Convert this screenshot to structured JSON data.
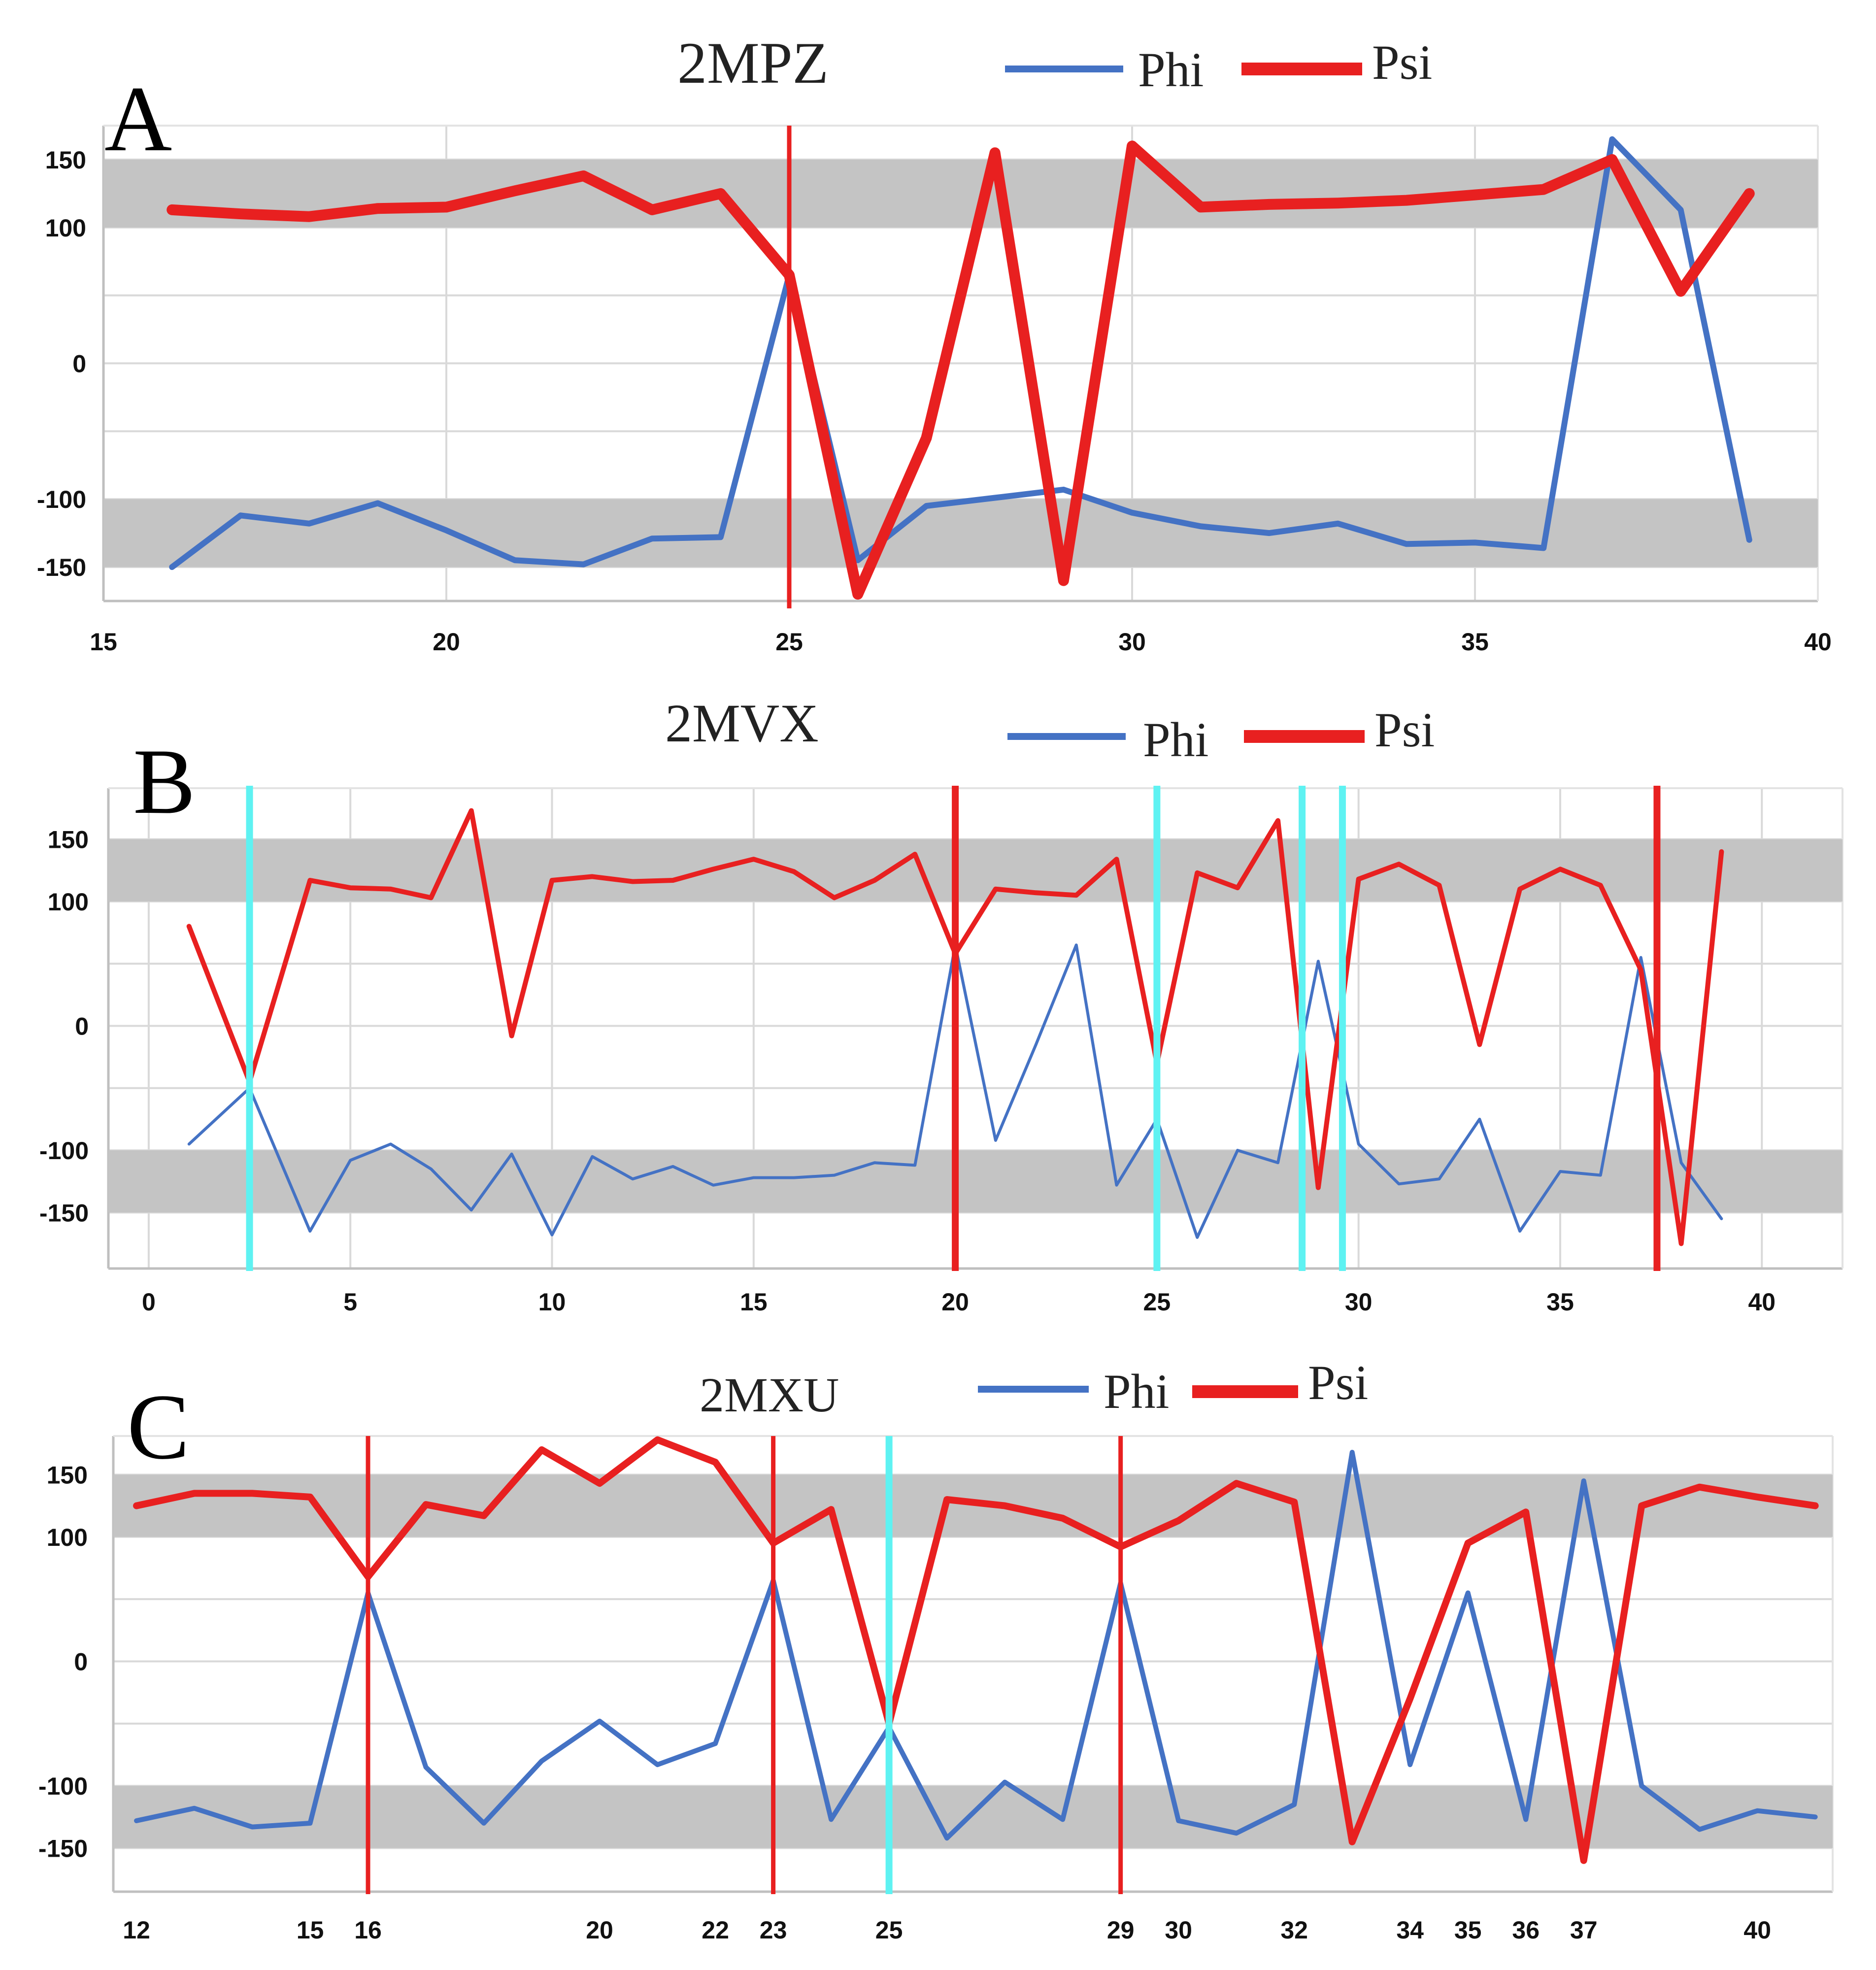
{
  "chart_data": [
    {
      "type": "line",
      "panel_letter": "A",
      "title": "2MPZ",
      "legend": [
        "Phi",
        "Psi"
      ],
      "xlim": [
        15,
        40
      ],
      "ylim": [
        -175,
        175
      ],
      "x_ticks": [
        "15",
        "20",
        "25",
        "30",
        "35",
        "40"
      ],
      "y_ticks": [
        "150",
        "100",
        "0",
        "-100",
        "-150"
      ],
      "shaded_bands": [
        [
          100,
          150
        ],
        [
          -150,
          -100
        ]
      ],
      "series": [
        {
          "name": "Phi",
          "color": "#4472c4",
          "x": [
            16,
            17,
            18,
            19,
            20,
            21,
            22,
            23,
            24,
            25,
            26,
            27,
            28,
            29,
            30,
            31,
            32,
            33,
            34,
            35,
            36,
            37,
            38,
            39
          ],
          "y": [
            -150,
            -112,
            -118,
            -103,
            -123,
            -145,
            -148,
            -129,
            -128,
            65,
            -145,
            -105,
            -99,
            -93,
            -110,
            -120,
            -125,
            -118,
            -133,
            -132,
            -136,
            165,
            113,
            -130
          ]
        },
        {
          "name": "Psi",
          "color": "#e82020",
          "x": [
            16,
            17,
            18,
            19,
            20,
            21,
            22,
            23,
            24,
            25,
            26,
            27,
            28,
            29,
            30,
            31,
            32,
            33,
            34,
            35,
            36,
            37,
            38,
            39
          ],
          "y": [
            113,
            110,
            108,
            114,
            115,
            127,
            138,
            113,
            125,
            65,
            -170,
            -55,
            155,
            -160,
            160,
            115,
            117,
            118,
            120,
            124,
            128,
            150,
            53,
            125
          ]
        }
      ],
      "markers": [
        {
          "x": 25,
          "color": "#e82020"
        }
      ]
    },
    {
      "type": "line",
      "panel_letter": "B",
      "title": "2MVX",
      "legend": [
        "Phi",
        "Psi"
      ],
      "xlim": [
        -1,
        42
      ],
      "ylim": [
        -195,
        195
      ],
      "x_ticks": [
        "0",
        "5",
        "10",
        "15",
        "20",
        "25",
        "30",
        "35",
        "40"
      ],
      "y_ticks": [
        "150",
        "100",
        "0",
        "-100",
        "-150"
      ],
      "shaded_bands": [
        [
          100,
          150
        ],
        [
          -150,
          -100
        ]
      ],
      "series": [
        {
          "name": "Phi",
          "color": "#4472c4",
          "x": [
            1,
            2.5,
            4,
            5,
            6,
            7,
            8,
            9,
            10,
            11,
            12,
            13,
            14,
            15,
            16,
            17,
            18,
            19,
            20,
            21,
            22,
            23,
            24,
            25,
            26,
            27,
            28,
            29,
            30,
            31,
            32,
            33,
            34,
            35,
            36,
            37,
            38,
            39
          ],
          "y": [
            -95,
            -50,
            -165,
            -108,
            -95,
            -115,
            -148,
            -103,
            -168,
            -105,
            -123,
            -113,
            -128,
            -122,
            -122,
            -120,
            -110,
            -112,
            65,
            -92,
            -15,
            65,
            -128,
            -75,
            -170,
            -100,
            -110,
            52,
            -95,
            -127,
            -123,
            -75,
            -165,
            -117,
            -120,
            55,
            -110,
            -155
          ]
        },
        {
          "name": "Psi",
          "color": "#e82020",
          "x": [
            1,
            2.5,
            4,
            5,
            6,
            7,
            8,
            9,
            10,
            11,
            12,
            13,
            14,
            15,
            16,
            17,
            18,
            19,
            20,
            21,
            22,
            23,
            24,
            25,
            26,
            27,
            28,
            29,
            30,
            31,
            32,
            33,
            34,
            35,
            36,
            37,
            38,
            39
          ],
          "y": [
            80,
            -45,
            117,
            111,
            110,
            103,
            173,
            -8,
            117,
            120,
            116,
            117,
            126,
            134,
            124,
            103,
            117,
            138,
            58,
            110,
            107,
            105,
            134,
            -30,
            123,
            111,
            165,
            -130,
            118,
            130,
            113,
            -15,
            110,
            126,
            113,
            45,
            -175,
            140
          ]
        }
      ],
      "markers": [
        {
          "x": 2.5,
          "color": "#5ef2f2"
        },
        {
          "x": 20,
          "color": "#e82020"
        },
        {
          "x": 25,
          "color": "#5ef2f2"
        },
        {
          "x": 28.6,
          "color": "#5ef2f2"
        },
        {
          "x": 29.6,
          "color": "#5ef2f2"
        },
        {
          "x": 37.4,
          "color": "#e82020"
        }
      ]
    },
    {
      "type": "line",
      "panel_letter": "C",
      "title": "2MXU",
      "legend": [
        "Phi",
        "Psi"
      ],
      "xlim": [
        11.6,
        41.3
      ],
      "ylim": [
        -185,
        185
      ],
      "x_ticks": [
        "12",
        "15",
        "16",
        "20",
        "22",
        "23",
        "25",
        "29",
        "30",
        "32",
        "34",
        "35",
        "36",
        "37",
        "40"
      ],
      "y_ticks": [
        "150",
        "100",
        "0",
        "-100",
        "-150"
      ],
      "shaded_bands": [
        [
          100,
          150
        ],
        [
          -150,
          -100
        ]
      ],
      "series": [
        {
          "name": "Phi",
          "color": "#4472c4",
          "x": [
            12,
            13,
            14,
            15,
            16,
            17,
            18,
            19,
            20,
            21,
            22,
            23,
            24,
            25,
            26,
            27,
            28,
            29,
            30,
            31,
            32,
            33,
            34,
            35,
            36,
            37,
            38,
            39,
            40,
            41
          ],
          "y": [
            -128,
            -118,
            -133,
            -130,
            55,
            -85,
            -130,
            -80,
            -48,
            -83,
            -66,
            65,
            -127,
            -53,
            -142,
            -97,
            -127,
            63,
            -128,
            -138,
            -115,
            168,
            -83,
            55,
            -127,
            145,
            -100,
            -135,
            -120,
            -125
          ]
        },
        {
          "name": "Psi",
          "color": "#e82020",
          "x": [
            12,
            13,
            14,
            15,
            16,
            17,
            18,
            19,
            20,
            21,
            22,
            23,
            24,
            25,
            26,
            27,
            28,
            29,
            30,
            31,
            32,
            33,
            34,
            35,
            36,
            37,
            38,
            39,
            40,
            41
          ],
          "y": [
            125,
            135,
            135,
            132,
            68,
            126,
            117,
            170,
            143,
            178,
            160,
            95,
            122,
            -50,
            130,
            125,
            115,
            92,
            113,
            143,
            128,
            -145,
            -30,
            95,
            120,
            -160,
            125,
            140,
            132,
            125
          ]
        }
      ],
      "markers": [
        {
          "x": 16,
          "color": "#e82020"
        },
        {
          "x": 23,
          "color": "#e82020"
        },
        {
          "x": 25,
          "color": "#5ef2f2"
        },
        {
          "x": 29,
          "color": "#e82020"
        }
      ]
    }
  ]
}
